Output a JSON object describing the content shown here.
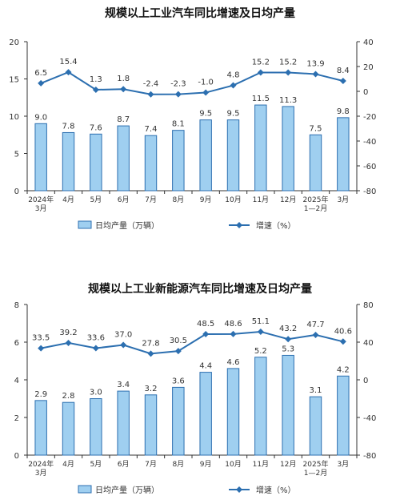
{
  "colors": {
    "bar_fill": "#9fcff0",
    "bar_stroke": "#2c6fb0",
    "line": "#2c6fb0",
    "axis": "#333333",
    "text": "#333333"
  },
  "legend": {
    "bar_label": "日均产量（万辆）",
    "line_label": "增速（%）"
  },
  "chart_data": [
    {
      "type": "bar",
      "title": "规模以上工业汽车同比增速及日均产量",
      "categories": [
        [
          "2024年",
          "3月"
        ],
        [
          "4月"
        ],
        [
          "5月"
        ],
        [
          "6月"
        ],
        [
          "7月"
        ],
        [
          "8月"
        ],
        [
          "9月"
        ],
        [
          "10月"
        ],
        [
          "11月"
        ],
        [
          "12月"
        ],
        [
          "2025年",
          "1—2月"
        ],
        [
          "3月"
        ]
      ],
      "series": [
        {
          "name": "日均产量（万辆）",
          "type": "bar",
          "axis": "left",
          "values": [
            9.0,
            7.8,
            7.6,
            8.7,
            7.4,
            8.1,
            9.5,
            9.5,
            11.5,
            11.3,
            7.5,
            9.8
          ],
          "labels": [
            "9.0",
            "7.8",
            "7.6",
            "8.7",
            "7.4",
            "8.1",
            "9.5",
            "9.5",
            "11.5",
            "11.3",
            "7.5",
            "9.8"
          ]
        },
        {
          "name": "增速（%）",
          "type": "line",
          "axis": "right",
          "values": [
            6.5,
            15.4,
            1.3,
            1.8,
            -2.4,
            -2.3,
            -1.0,
            4.8,
            15.2,
            15.2,
            13.9,
            8.4
          ],
          "labels": [
            "6.5",
            "15.4",
            "1.3",
            "1.8",
            "-2.4",
            "-2.3",
            "-1.0",
            "4.8",
            "15.2",
            "15.2",
            "13.9",
            "8.4"
          ]
        }
      ],
      "y_left": {
        "min": 0,
        "max": 20,
        "ticks": [
          0,
          5,
          10,
          15,
          20
        ]
      },
      "y_right": {
        "min": -80,
        "max": 40,
        "ticks": [
          -80,
          -60,
          -40,
          -20,
          0,
          20,
          40
        ]
      },
      "grid": false,
      "legend_position": "bottom"
    },
    {
      "type": "bar",
      "title": "规模以上工业新能源汽车同比增速及日均产量",
      "categories": [
        [
          "2024年",
          "3月"
        ],
        [
          "4月"
        ],
        [
          "5月"
        ],
        [
          "6月"
        ],
        [
          "7月"
        ],
        [
          "8月"
        ],
        [
          "9月"
        ],
        [
          "10月"
        ],
        [
          "11月"
        ],
        [
          "12月"
        ],
        [
          "2025年",
          "1—2月"
        ],
        [
          "3月"
        ]
      ],
      "series": [
        {
          "name": "日均产量（万辆）",
          "type": "bar",
          "axis": "left",
          "values": [
            2.9,
            2.8,
            3.0,
            3.4,
            3.2,
            3.6,
            4.4,
            4.6,
            5.2,
            5.3,
            3.1,
            4.2
          ],
          "labels": [
            "2.9",
            "2.8",
            "3.0",
            "3.4",
            "3.2",
            "3.6",
            "4.4",
            "4.6",
            "5.2",
            "5.3",
            "3.1",
            "4.2"
          ]
        },
        {
          "name": "增速（%）",
          "type": "line",
          "axis": "right",
          "values": [
            33.5,
            39.2,
            33.6,
            37.0,
            27.8,
            30.5,
            48.5,
            48.6,
            51.1,
            43.2,
            47.7,
            40.6
          ],
          "labels": [
            "33.5",
            "39.2",
            "33.6",
            "37.0",
            "27.8",
            "30.5",
            "48.5",
            "48.6",
            "51.1",
            "43.2",
            "47.7",
            "40.6"
          ]
        }
      ],
      "y_left": {
        "min": 0,
        "max": 8,
        "ticks": [
          0,
          2,
          4,
          6,
          8
        ]
      },
      "y_right": {
        "min": -80,
        "max": 80,
        "ticks": [
          -80,
          -40,
          0,
          40,
          80
        ]
      },
      "grid": false,
      "legend_position": "bottom"
    }
  ]
}
